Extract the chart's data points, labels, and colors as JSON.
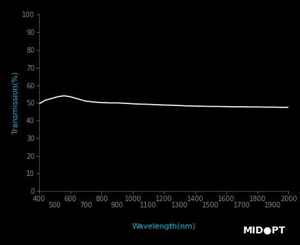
{
  "title": "",
  "xlabel": "Wavelength(nm)",
  "ylabel": "Transmission(%)",
  "background_color": "#000000",
  "plot_bg_color": "#000000",
  "line_color": "#ffffff",
  "axis_label_color": "#00bcd4",
  "tick_label_color": "#888888",
  "xlim": [
    400,
    2000
  ],
  "ylim": [
    0,
    100
  ],
  "xticks_row1": [
    400,
    600,
    800,
    1000,
    1200,
    1400,
    1600,
    1800,
    2000
  ],
  "xticks_row2": [
    500,
    700,
    900,
    1100,
    1300,
    1500,
    1700,
    1900
  ],
  "yticks": [
    0,
    10,
    20,
    30,
    40,
    50,
    60,
    70,
    80,
    90,
    100
  ],
  "wavelengths": [
    400,
    420,
    440,
    460,
    480,
    500,
    520,
    540,
    560,
    580,
    600,
    620,
    640,
    660,
    680,
    700,
    750,
    800,
    850,
    900,
    950,
    1000,
    1050,
    1100,
    1150,
    1200,
    1250,
    1300,
    1350,
    1400,
    1450,
    1500,
    1550,
    1600,
    1650,
    1700,
    1750,
    1800,
    1850,
    1900,
    1950,
    2000
  ],
  "transmission": [
    49.5,
    50.5,
    51.5,
    52.0,
    52.5,
    53.0,
    53.5,
    53.8,
    54.0,
    53.8,
    53.5,
    53.0,
    52.5,
    52.0,
    51.5,
    51.0,
    50.5,
    50.2,
    50.0,
    50.0,
    49.8,
    49.5,
    49.3,
    49.2,
    49.0,
    48.8,
    48.7,
    48.5,
    48.3,
    48.2,
    48.1,
    48.0,
    48.0,
    47.9,
    47.8,
    47.8,
    47.7,
    47.7,
    47.6,
    47.6,
    47.5,
    47.5
  ],
  "line_width": 1.2,
  "xlabel_fontsize": 8,
  "ylabel_fontsize": 8,
  "tick_fontsize": 7,
  "midopt_color": "#ffffff",
  "midopt_fontsize": 10
}
